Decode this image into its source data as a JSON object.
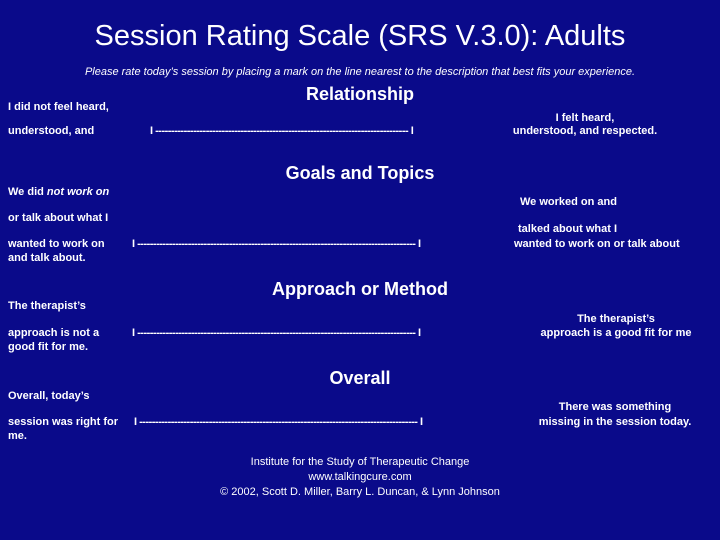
{
  "title": "Session Rating Scale (SRS V.3.0): Adults",
  "subtitle": "Please rate today’s session by placing a mark on the line nearest to the description that best fits your experience.",
  "relationship": {
    "heading": "Relationship",
    "left_1": "I did not feel heard,",
    "left_2": "understood, and",
    "line": "I -------------------------------------------------------------------------------- I",
    "right_1": "I felt heard,",
    "right_2": "understood, and respected."
  },
  "goals": {
    "heading": "Goals and Topics",
    "left_1a": "We did ",
    "left_1b": "not work on",
    "left_2": "or talk about what I",
    "left_3": "wanted to work on",
    "left_4": "and talk about.",
    "line": "I ---------------------------------------------------------------------------------------- I",
    "right_1": "We worked on and",
    "right_2": "talked about what I",
    "right_3": "wanted to work on or talk about"
  },
  "approach": {
    "heading": "Approach or Method",
    "left_1": "The therapist’s",
    "left_2": "approach is not a",
    "left_3": "good fit for me.",
    "line": "I ---------------------------------------------------------------------------------------- I",
    "right_1": "The therapist’s",
    "right_2": "approach is a good fit for me"
  },
  "overall": {
    "heading": "Overall",
    "left_1": "Overall, today’s",
    "left_2": "session was right for",
    "left_3": "me.",
    "line": "I ---------------------------------------------------------------------------------------- I",
    "right_1": "There was something",
    "right_2": "missing in the session today."
  },
  "footer": {
    "line_1": "Institute for the Study of Therapeutic Change",
    "line_2": "www.talkingcure.com",
    "line_3": "© 2002, Scott D. Miller, Barry L. Duncan, & Lynn Johnson"
  }
}
